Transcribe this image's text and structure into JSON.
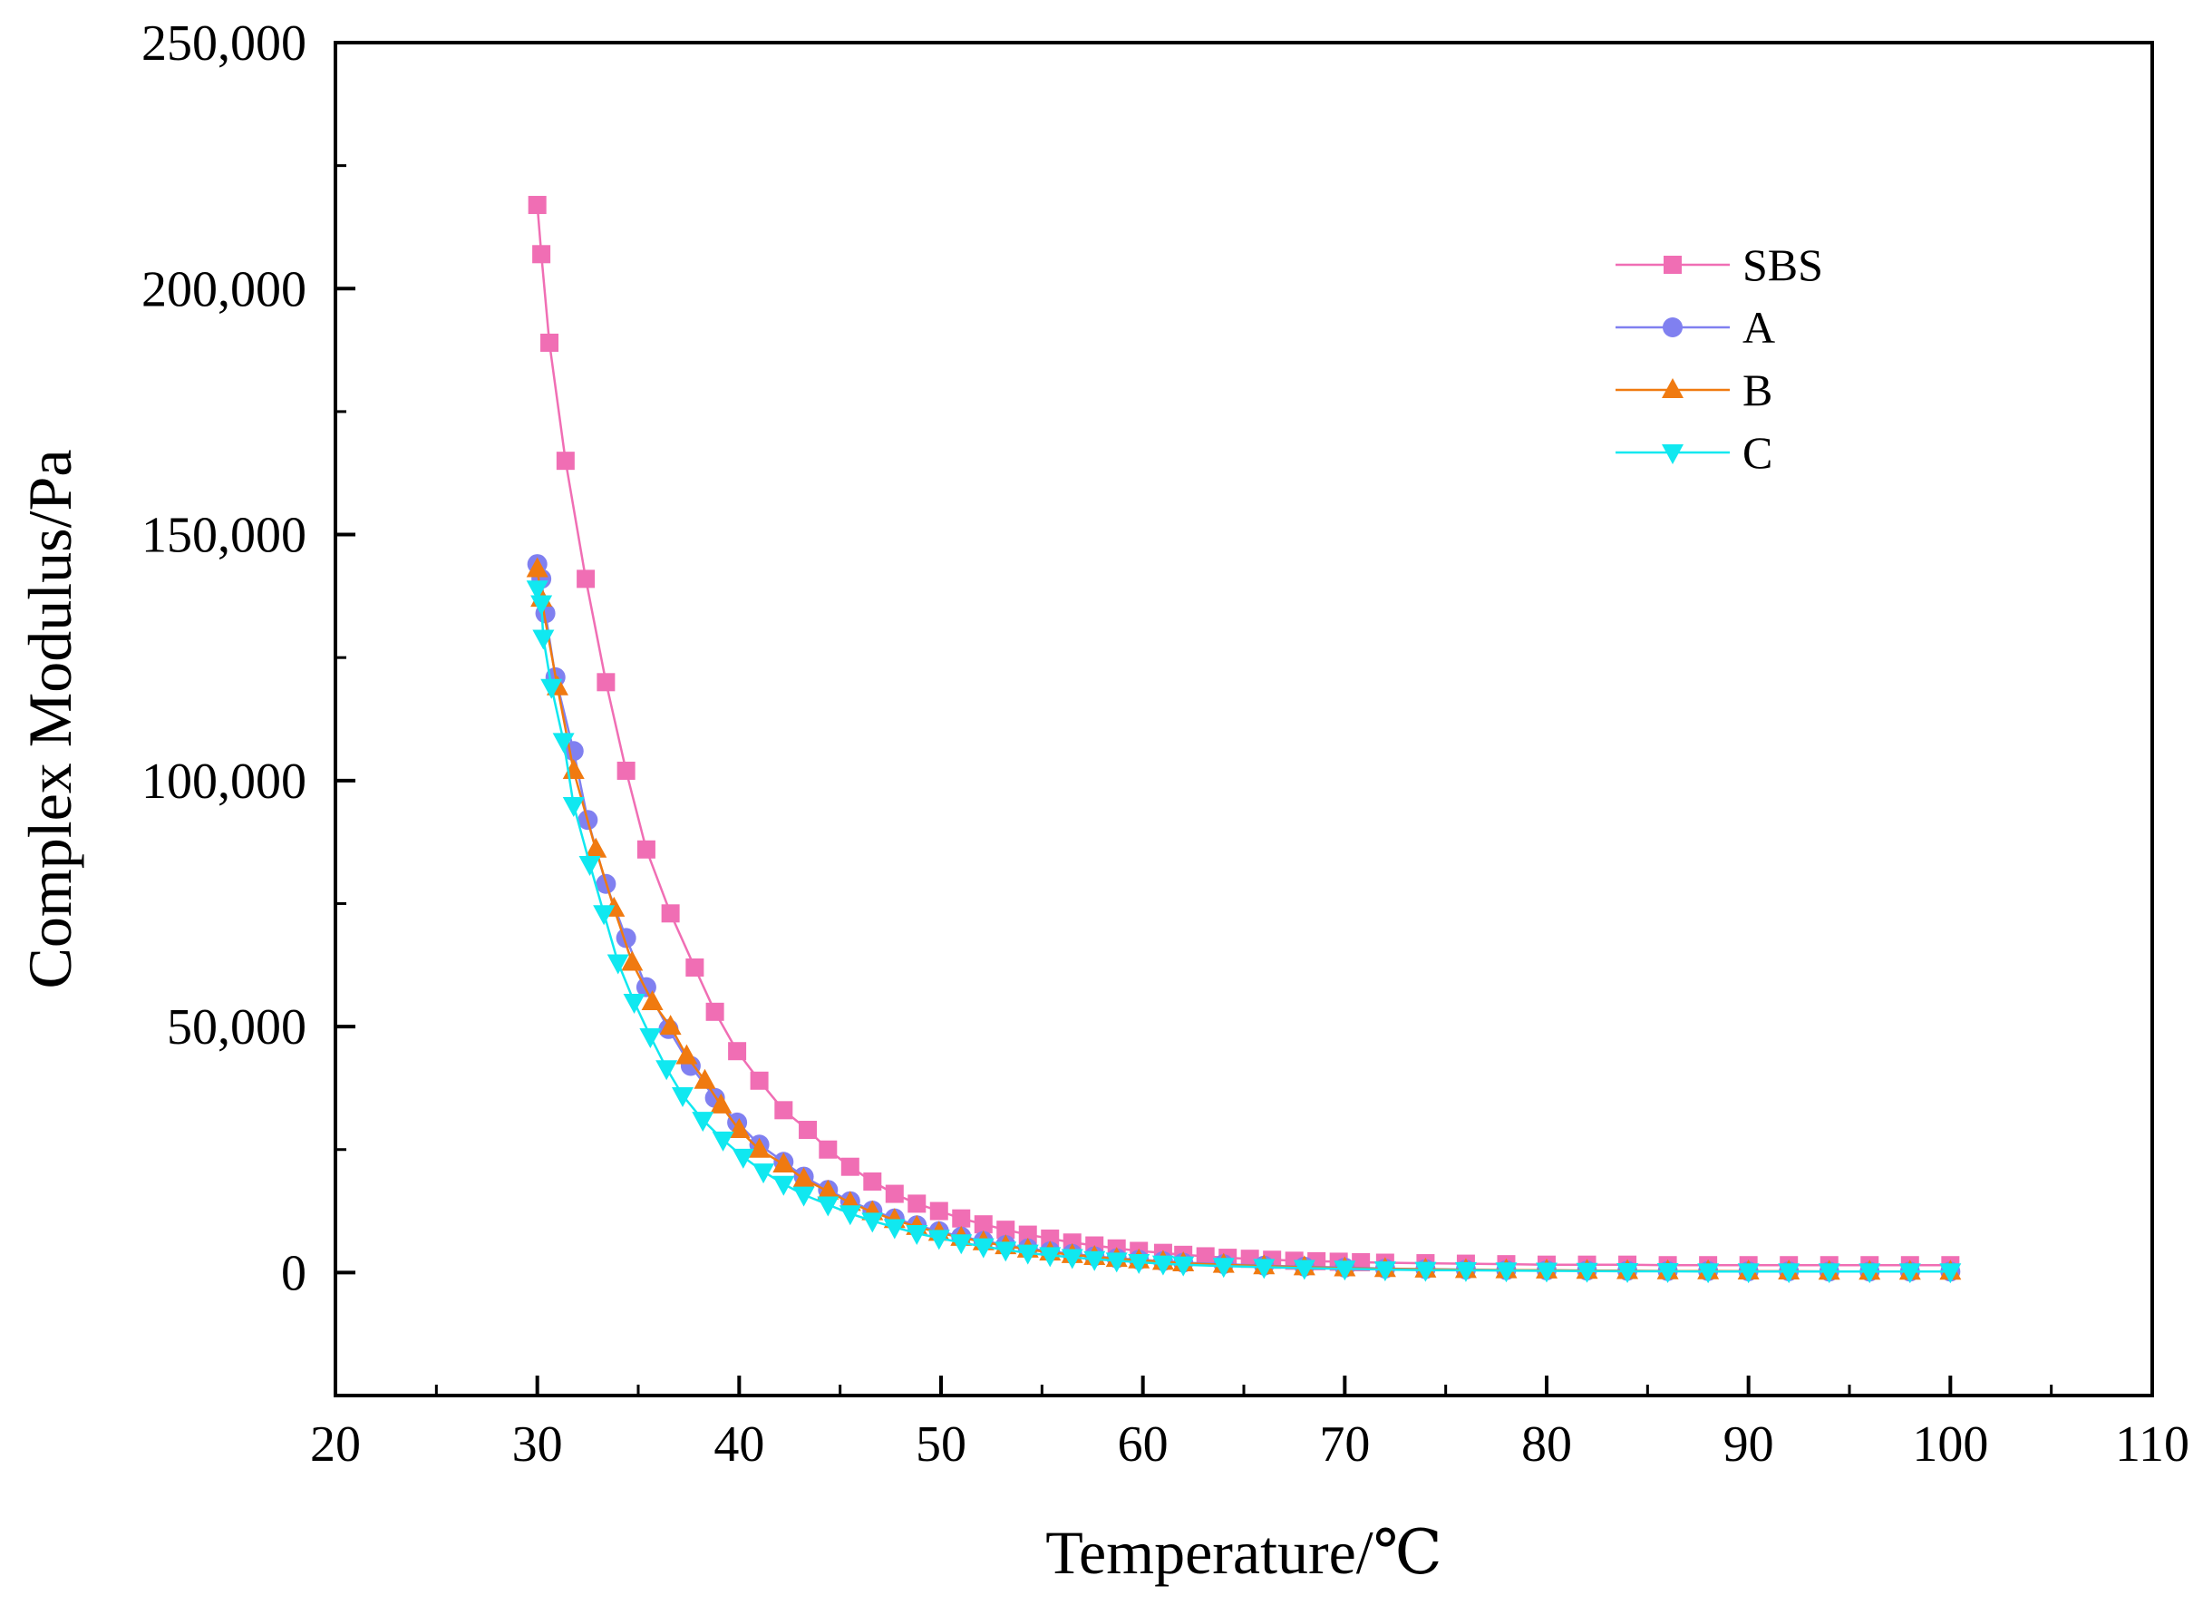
{
  "chart_data": {
    "type": "line",
    "title": "",
    "xlabel": "Temperature/℃",
    "ylabel": "Complex Modulus/Pa",
    "xlim": [
      20,
      110
    ],
    "ylim": [
      -25000,
      250000
    ],
    "x_ticks": [
      20,
      30,
      40,
      50,
      60,
      70,
      80,
      90,
      100,
      110
    ],
    "x_tick_labels": [
      "20",
      "30",
      "40",
      "50",
      "60",
      "70",
      "80",
      "90",
      "100",
      "110"
    ],
    "y_ticks": [
      0,
      50000,
      100000,
      150000,
      200000,
      250000
    ],
    "y_tick_labels": [
      "0",
      "50,000",
      "100,000",
      "150,000",
      "200,000",
      "250,000"
    ],
    "grid": false,
    "legend_position": "upper-right",
    "series": [
      {
        "name": "SBS",
        "color": "#f06eb4",
        "marker": "square",
        "x": [
          30,
          30.2,
          30.6,
          31.4,
          32.4,
          33.4,
          34.4,
          35.4,
          36.6,
          37.8,
          38.8,
          39.9,
          41,
          42.2,
          43.4,
          44.4,
          45.5,
          46.6,
          47.7,
          48.8,
          49.9,
          51,
          52.1,
          53.2,
          54.3,
          55.4,
          56.5,
          57.6,
          58.7,
          59.8,
          61,
          62,
          63.1,
          64.2,
          65.3,
          66.4,
          67.5,
          68.6,
          69.7,
          70.8,
          72,
          74,
          76,
          78,
          80,
          82,
          84,
          86,
          88,
          90,
          92,
          94,
          96,
          98,
          100
        ],
        "y": [
          217000,
          207000,
          189000,
          165000,
          141000,
          120000,
          102000,
          86000,
          73000,
          62000,
          53000,
          45000,
          39000,
          33000,
          29000,
          25000,
          21500,
          18500,
          16000,
          14000,
          12500,
          11000,
          9800,
          8700,
          7700,
          6900,
          6100,
          5500,
          4900,
          4400,
          4000,
          3600,
          3300,
          3000,
          2800,
          2600,
          2400,
          2300,
          2200,
          2100,
          2000,
          1900,
          1800,
          1700,
          1600,
          1600,
          1600,
          1500,
          1500,
          1500,
          1500,
          1500,
          1500,
          1500,
          1500
        ]
      },
      {
        "name": "A",
        "color": "#8080f0",
        "marker": "circle",
        "x": [
          30,
          30.2,
          30.4,
          30.9,
          31.8,
          32.5,
          33.4,
          34.4,
          35.4,
          36.5,
          37.6,
          38.8,
          39.9,
          41,
          42.2,
          43.2,
          44.4,
          45.5,
          46.6,
          47.7,
          48.8,
          49.9,
          51,
          52.1,
          53.2,
          54.3,
          55.4,
          56.5,
          57.6,
          58.7,
          59.8,
          61,
          62,
          64,
          66,
          68,
          70,
          72,
          74,
          76,
          78,
          80,
          82,
          84,
          86,
          88,
          90,
          92,
          94,
          96,
          98,
          100
        ],
        "y": [
          144000,
          141000,
          134000,
          121000,
          106000,
          92000,
          79000,
          68000,
          58000,
          49500,
          42000,
          35500,
          30500,
          26000,
          22500,
          19500,
          16800,
          14500,
          12600,
          11000,
          9600,
          8400,
          7300,
          6400,
          5600,
          4900,
          4300,
          3800,
          3300,
          2900,
          2600,
          2300,
          2000,
          1700,
          1400,
          1200,
          1000,
          800,
          700,
          600,
          500,
          450,
          400,
          350,
          300,
          300,
          250,
          250,
          200,
          200,
          200,
          200
        ]
      },
      {
        "name": "B",
        "color": "#f07a10",
        "marker": "triangle-up",
        "x": [
          30,
          30.2,
          31,
          31.8,
          32.9,
          33.8,
          34.7,
          35.7,
          36.6,
          37.4,
          38.3,
          39.1,
          40,
          41,
          42.2,
          43.2,
          44.4,
          45.5,
          46.6,
          47.7,
          48.8,
          49.9,
          51,
          52.1,
          53.2,
          54.3,
          55.4,
          56.5,
          57.6,
          58.7,
          59.8,
          61,
          62,
          64,
          66,
          68,
          70,
          72,
          74,
          76,
          78,
          80,
          82,
          84,
          86,
          88,
          90,
          92,
          94,
          96,
          98,
          100
        ],
        "y": [
          143000,
          137000,
          119000,
          102000,
          86000,
          74000,
          63000,
          55000,
          50000,
          44000,
          39000,
          34000,
          29000,
          25000,
          22000,
          19000,
          16500,
          14200,
          12300,
          10700,
          9300,
          8100,
          7100,
          6200,
          5400,
          4700,
          4100,
          3600,
          3200,
          2800,
          2500,
          2200,
          1900,
          1600,
          1300,
          1100,
          900,
          750,
          650,
          550,
          500,
          450,
          400,
          350,
          300,
          300,
          250,
          250,
          200,
          200,
          200,
          200
        ]
      },
      {
        "name": "C",
        "color": "#10e8f0",
        "marker": "triangle-down",
        "x": [
          30,
          30.2,
          30.3,
          30.7,
          31.3,
          31.8,
          32.6,
          33.3,
          34,
          34.8,
          35.6,
          36.4,
          37.2,
          38.2,
          39.2,
          40.2,
          41.2,
          42.2,
          43.2,
          44.4,
          45.5,
          46.6,
          47.7,
          48.8,
          49.9,
          51,
          52.1,
          53.2,
          54.3,
          55.4,
          56.5,
          57.6,
          58.7,
          59.8,
          61,
          62,
          64,
          66,
          68,
          70,
          72,
          74,
          76,
          78,
          80,
          82,
          84,
          86,
          88,
          90,
          92,
          94,
          96,
          98,
          100
        ],
        "y": [
          139000,
          136000,
          129000,
          119000,
          108000,
          95000,
          83000,
          73000,
          63000,
          55000,
          48000,
          41500,
          36000,
          31000,
          27000,
          23500,
          20500,
          18000,
          15800,
          13800,
          12000,
          10500,
          9200,
          8000,
          7000,
          6100,
          5300,
          4600,
          4000,
          3500,
          3100,
          2700,
          2400,
          2100,
          1800,
          1600,
          1300,
          1100,
          900,
          750,
          600,
          500,
          450,
          400,
          350,
          300,
          250,
          250,
          200,
          200,
          200,
          200,
          200,
          200,
          200
        ]
      }
    ]
  }
}
